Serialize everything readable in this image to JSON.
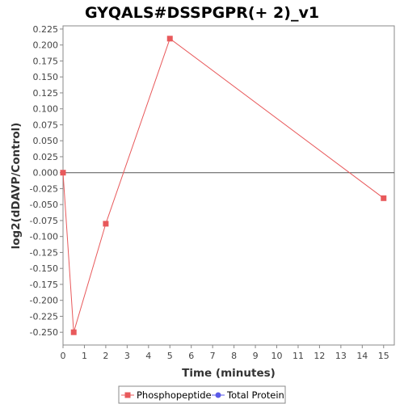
{
  "chart_data": {
    "type": "line",
    "title": "GYQALS#DSSPGPR(+ 2)_v1",
    "xlabel": "Time (minutes)",
    "ylabel": "log2(dDAVP/Control)",
    "xlim": [
      0,
      15.5
    ],
    "ylim": [
      -0.27,
      0.23
    ],
    "x_ticks": [
      0,
      1,
      2,
      3,
      4,
      5,
      6,
      7,
      8,
      9,
      10,
      11,
      12,
      13,
      14,
      15
    ],
    "y_ticks": [
      0.225,
      0.2,
      0.175,
      0.15,
      0.125,
      0.1,
      0.075,
      0.05,
      0.025,
      0.0,
      -0.025,
      -0.05,
      -0.075,
      -0.1,
      -0.125,
      -0.15,
      -0.175,
      -0.2,
      -0.225,
      -0.25
    ],
    "y_tick_labels": [
      "0.225",
      "0.200",
      "0.175",
      "0.150",
      "0.125",
      "0.100",
      "0.075",
      "0.050",
      "0.025",
      "0.000",
      "-0.025",
      "-0.050",
      "-0.075",
      "-0.100",
      "-0.125",
      "-0.150",
      "-0.175",
      "-0.200",
      "-0.225",
      "-0.250"
    ],
    "zero_line": true,
    "grid": false,
    "legend_position": "bottom",
    "series": [
      {
        "name": "Phosphopeptide",
        "color": "#e8595b",
        "marker": "square",
        "points": [
          {
            "x": 0,
            "y": 0.0
          },
          {
            "x": 0.5,
            "y": -0.25
          },
          {
            "x": 2,
            "y": -0.08
          },
          {
            "x": 5,
            "y": 0.21
          },
          {
            "x": 15,
            "y": -0.04
          }
        ]
      },
      {
        "name": "Total Protein",
        "color": "#5a5ae8",
        "marker": "circle",
        "points": []
      }
    ]
  }
}
